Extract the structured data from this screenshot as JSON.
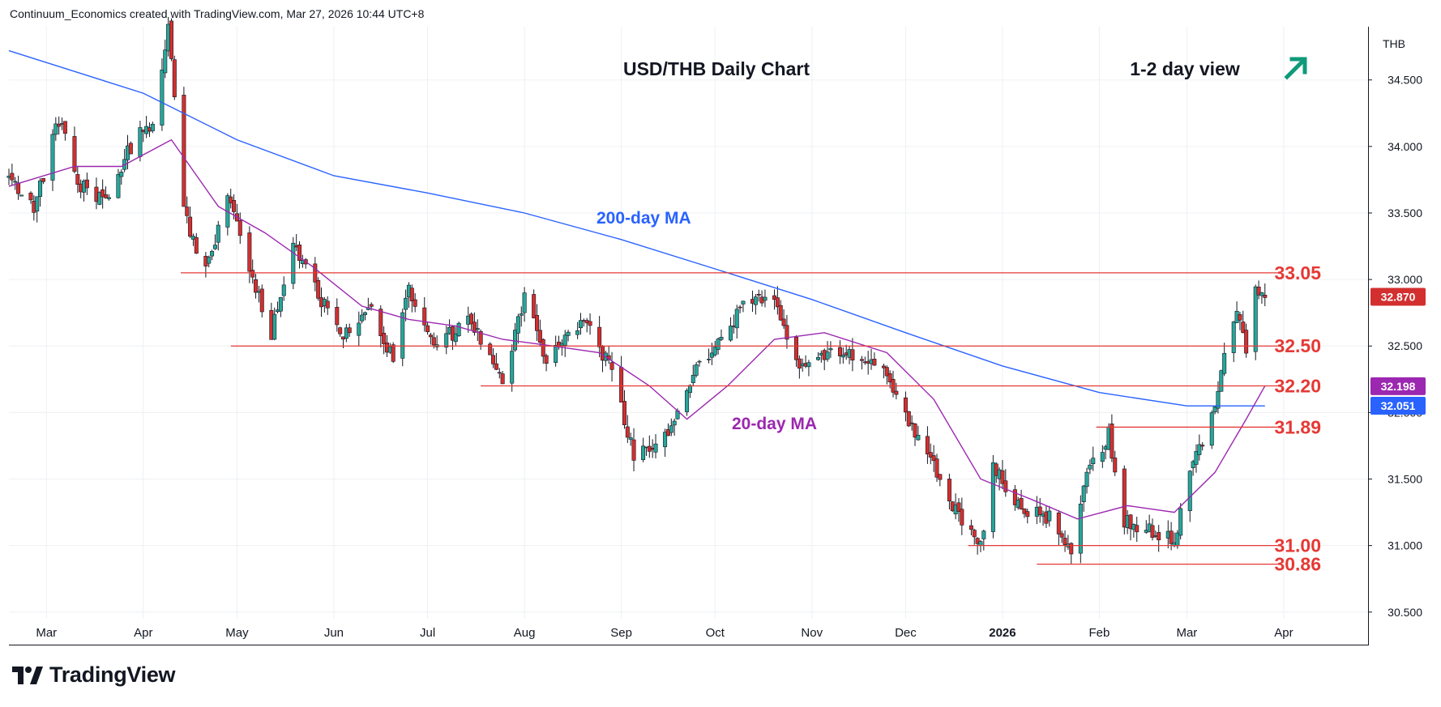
{
  "header": {
    "attribution": "Continuum_Economics created with TradingView.com, Mar 27, 2026 10:44 UTC+8"
  },
  "axis": {
    "currency": "THB"
  },
  "brand": {
    "name": "TradingView"
  },
  "colors": {
    "up": "#26a69a",
    "down": "#d32f2f",
    "ma200": "#2962ff",
    "ma20": "#9c27b0",
    "level": "#e53935",
    "title_arrow": "#0f9a7a",
    "grid": "#eef0f3",
    "text": "#131722"
  },
  "chart_data": {
    "type": "candlestick",
    "title": "USD/THB Daily Chart",
    "view_label": "1-2 day view",
    "view_direction": "up",
    "y_ticks": [
      "30.500",
      "31.000",
      "31.500",
      "32.000",
      "32.500",
      "33.000",
      "33.500",
      "34.000",
      "34.500"
    ],
    "ylim": [
      30.45,
      34.9
    ],
    "x_ticks": [
      "Mar",
      "Apr",
      "May",
      "Jun",
      "Jul",
      "Aug",
      "Sep",
      "Oct",
      "Nov",
      "Dec",
      "2026",
      "Feb",
      "Mar",
      "Apr"
    ],
    "x_tick_dates": [
      "2025-03-01",
      "2025-04-01",
      "2025-05-01",
      "2025-06-01",
      "2025-07-01",
      "2025-08-01",
      "2025-09-01",
      "2025-10-01",
      "2025-11-01",
      "2025-12-01",
      "2026-01-01",
      "2026-02-01",
      "2026-03-01",
      "2026-04-01"
    ],
    "xlim": [
      "2025-02-17",
      "2026-04-28"
    ],
    "price_labels": [
      {
        "text": "32.870",
        "value": 32.87,
        "color": "#d32f2f"
      },
      {
        "text": "32.198",
        "value": 32.198,
        "color": "#9c27b0"
      },
      {
        "text": "32.051",
        "value": 32.051,
        "color": "#2962ff"
      }
    ],
    "levels": [
      {
        "label": "33.05",
        "value": 33.05,
        "from": "2025-04-13"
      },
      {
        "label": "32.50",
        "value": 32.5,
        "from": "2025-04-29"
      },
      {
        "label": "32.20",
        "value": 32.2,
        "from": "2025-07-18"
      },
      {
        "label": "31.89",
        "value": 31.89,
        "from": "2026-01-31"
      },
      {
        "label": "31.00",
        "value": 31.0,
        "from": "2025-12-21"
      },
      {
        "label": "30.86",
        "value": 30.86,
        "from": "2026-01-12"
      }
    ],
    "annotations": [
      {
        "text": "200-day MA",
        "color": "#2962ff"
      },
      {
        "text": "20-day MA",
        "color": "#9c27b0"
      }
    ],
    "close_path": [
      [
        "2025-02-17",
        33.75
      ],
      [
        "2025-02-25",
        33.55
      ],
      [
        "2025-03-05",
        34.2
      ],
      [
        "2025-03-12",
        33.7
      ],
      [
        "2025-03-20",
        33.6
      ],
      [
        "2025-03-28",
        34.0
      ],
      [
        "2025-04-04",
        34.2
      ],
      [
        "2025-04-09",
        34.9
      ],
      [
        "2025-04-14",
        33.5
      ],
      [
        "2025-04-21",
        33.05
      ],
      [
        "2025-04-28",
        33.6
      ],
      [
        "2025-05-05",
        33.1
      ],
      [
        "2025-05-12",
        32.6
      ],
      [
        "2025-05-19",
        33.3
      ],
      [
        "2025-05-27",
        32.9
      ],
      [
        "2025-06-03",
        32.55
      ],
      [
        "2025-06-12",
        32.8
      ],
      [
        "2025-06-20",
        32.4
      ],
      [
        "2025-06-25",
        32.9
      ],
      [
        "2025-07-03",
        32.5
      ],
      [
        "2025-07-15",
        32.7
      ],
      [
        "2025-07-25",
        32.25
      ],
      [
        "2025-08-01",
        32.85
      ],
      [
        "2025-08-08",
        32.4
      ],
      [
        "2025-08-20",
        32.7
      ],
      [
        "2025-08-28",
        32.35
      ],
      [
        "2025-09-05",
        31.7
      ],
      [
        "2025-09-15",
        31.8
      ],
      [
        "2025-09-22",
        32.2
      ],
      [
        "2025-10-01",
        32.5
      ],
      [
        "2025-10-10",
        32.8
      ],
      [
        "2025-10-20",
        32.85
      ],
      [
        "2025-10-27",
        32.35
      ],
      [
        "2025-11-05",
        32.45
      ],
      [
        "2025-11-15",
        32.45
      ],
      [
        "2025-11-25",
        32.3
      ],
      [
        "2025-12-02",
        31.95
      ],
      [
        "2025-12-12",
        31.5
      ],
      [
        "2025-12-20",
        31.1
      ],
      [
        "2025-12-26",
        31.05
      ],
      [
        "2025-12-29",
        31.6
      ],
      [
        "2026-01-06",
        31.3
      ],
      [
        "2026-01-16",
        31.2
      ],
      [
        "2026-01-23",
        30.95
      ],
      [
        "2026-01-28",
        31.5
      ],
      [
        "2026-02-04",
        31.85
      ],
      [
        "2026-02-08",
        31.2
      ],
      [
        "2026-02-18",
        31.1
      ],
      [
        "2026-02-25",
        31.05
      ],
      [
        "2026-03-03",
        31.6
      ],
      [
        "2026-03-08",
        31.85
      ],
      [
        "2026-03-12",
        32.3
      ],
      [
        "2026-03-17",
        32.8
      ],
      [
        "2026-03-20",
        32.5
      ],
      [
        "2026-03-23",
        32.95
      ],
      [
        "2026-03-26",
        32.87
      ]
    ],
    "ma200": [
      [
        "2025-02-17",
        34.72
      ],
      [
        "2025-04-01",
        34.4
      ],
      [
        "2025-05-01",
        34.05
      ],
      [
        "2025-06-01",
        33.78
      ],
      [
        "2025-07-01",
        33.65
      ],
      [
        "2025-08-01",
        33.5
      ],
      [
        "2025-09-01",
        33.3
      ],
      [
        "2025-10-01",
        33.08
      ],
      [
        "2025-11-01",
        32.85
      ],
      [
        "2025-12-01",
        32.6
      ],
      [
        "2026-01-01",
        32.35
      ],
      [
        "2026-02-01",
        32.15
      ],
      [
        "2026-03-01",
        32.05
      ],
      [
        "2026-03-26",
        32.05
      ]
    ],
    "ma20": [
      [
        "2025-02-17",
        33.7
      ],
      [
        "2025-03-10",
        33.85
      ],
      [
        "2025-03-25",
        33.85
      ],
      [
        "2025-04-10",
        34.05
      ],
      [
        "2025-04-25",
        33.55
      ],
      [
        "2025-05-10",
        33.35
      ],
      [
        "2025-05-25",
        33.1
      ],
      [
        "2025-06-10",
        32.8
      ],
      [
        "2025-06-25",
        32.7
      ],
      [
        "2025-07-10",
        32.65
      ],
      [
        "2025-07-25",
        32.55
      ],
      [
        "2025-08-10",
        32.5
      ],
      [
        "2025-08-25",
        32.45
      ],
      [
        "2025-09-10",
        32.2
      ],
      [
        "2025-09-22",
        31.95
      ],
      [
        "2025-10-05",
        32.2
      ],
      [
        "2025-10-20",
        32.55
      ],
      [
        "2025-11-05",
        32.6
      ],
      [
        "2025-11-25",
        32.45
      ],
      [
        "2025-12-10",
        32.1
      ],
      [
        "2025-12-25",
        31.5
      ],
      [
        "2026-01-10",
        31.35
      ],
      [
        "2026-01-25",
        31.2
      ],
      [
        "2026-02-10",
        31.3
      ],
      [
        "2026-02-25",
        31.25
      ],
      [
        "2026-03-10",
        31.55
      ],
      [
        "2026-03-20",
        31.95
      ],
      [
        "2026-03-26",
        32.2
      ]
    ]
  }
}
